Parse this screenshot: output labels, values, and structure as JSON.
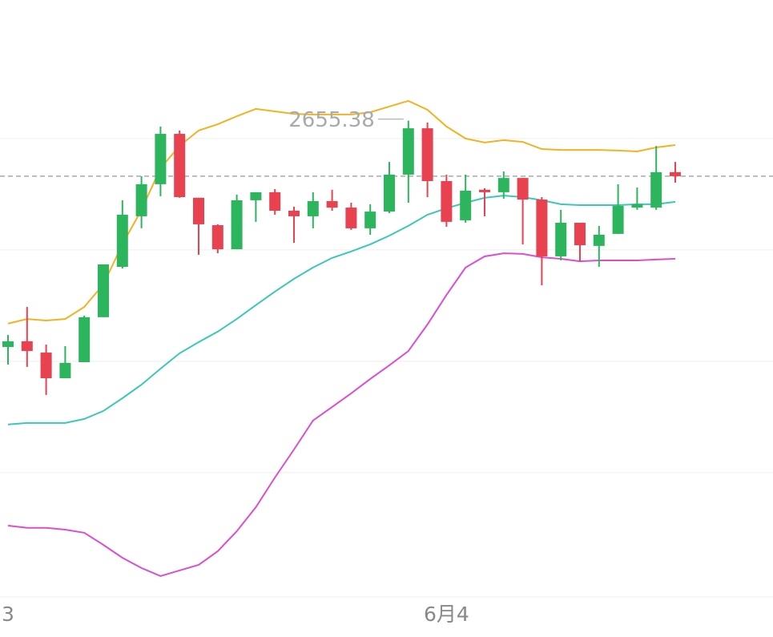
{
  "chart_data": {
    "type": "candlestick",
    "categories": [
      "3",
      null,
      null,
      null,
      null,
      null,
      null,
      null,
      null,
      null,
      null,
      null,
      null,
      null,
      null,
      null,
      null,
      null,
      null,
      null,
      null,
      null,
      null,
      "6月4",
      null,
      null,
      null,
      null,
      null,
      null,
      null,
      null,
      null,
      null,
      null,
      null
    ],
    "open": [
      2645.22,
      2645.48,
      2644.97,
      2643.82,
      2644.54,
      2646.56,
      2648.82,
      2651.09,
      2652.53,
      2654.79,
      2651.92,
      2650.69,
      2649.61,
      2651.81,
      2652.17,
      2651.34,
      2651.09,
      2651.77,
      2651.48,
      2650.55,
      2651.3,
      2652.96,
      2655.04,
      2652.67,
      2650.91,
      2652.28,
      2652.17,
      2652.81,
      2651.84,
      2649.29,
      2650.8,
      2649.76,
      2650.3,
      2651.48,
      2651.48,
      2653.07
    ],
    "high": [
      2645.76,
      2647.02,
      2645.33,
      2645.26,
      2646.63,
      2648.93,
      2651.81,
      2652.89,
      2655.12,
      2654.94,
      2651.92,
      2650.73,
      2652.06,
      2652.17,
      2652.31,
      2651.52,
      2652.17,
      2652.28,
      2651.7,
      2651.63,
      2653.53,
      2655.38,
      2655.3,
      2652.96,
      2652.96,
      2652.35,
      2653.1,
      2652.81,
      2651.95,
      2651.38,
      2650.8,
      2650.66,
      2652.53,
      2652.38,
      2654.25,
      2653.53
    ],
    "low": [
      2644.43,
      2644.33,
      2643.07,
      2643.82,
      2644.54,
      2646.56,
      2648.75,
      2650.55,
      2651.99,
      2651.92,
      2649.36,
      2649.43,
      2649.61,
      2650.84,
      2651.16,
      2649.9,
      2650.55,
      2651.34,
      2650.48,
      2650.26,
      2651.23,
      2651.7,
      2651.95,
      2650.62,
      2650.8,
      2651.09,
      2651.88,
      2649.83,
      2647.99,
      2649.11,
      2649.07,
      2648.82,
      2650.3,
      2651.38,
      2651.38,
      2652.6
    ],
    "close": [
      2645.48,
      2645.04,
      2643.82,
      2644.51,
      2646.56,
      2648.93,
      2651.16,
      2652.53,
      2654.79,
      2651.95,
      2650.73,
      2649.61,
      2651.81,
      2652.17,
      2651.34,
      2651.09,
      2651.77,
      2651.48,
      2650.55,
      2651.3,
      2652.96,
      2655.04,
      2652.67,
      2650.84,
      2652.24,
      2652.17,
      2652.81,
      2651.84,
      2649.29,
      2650.8,
      2649.79,
      2650.26,
      2651.56,
      2651.63,
      2653.07,
      2652.89
    ],
    "up_color": "#2db55d",
    "down_color": "#e84150",
    "bands": [
      {
        "color": "#f0b323",
        "values": [
          2646.27,
          2646.48,
          2646.41,
          2646.48,
          2647.02,
          2648.03,
          2649.83,
          2651.38,
          2653.25,
          2654.25,
          2654.94,
          2655.22,
          2655.58,
          2655.91,
          2655.8,
          2655.69,
          2655.66,
          2655.66,
          2655.66,
          2655.76,
          2656.02,
          2656.27,
          2655.87,
          2655.12,
          2654.58,
          2654.4,
          2654.51,
          2654.43,
          2654.11,
          2654.07,
          2654.07,
          2654.07,
          2654.04,
          2654.0,
          2654.18,
          2654.29
        ]
      },
      {
        "color": "#3cc8b4",
        "values": [
          2641.74,
          2641.81,
          2641.81,
          2641.81,
          2641.99,
          2642.35,
          2642.92,
          2643.53,
          2644.25,
          2644.94,
          2645.44,
          2645.91,
          2646.48,
          2647.1,
          2647.71,
          2648.28,
          2648.79,
          2649.22,
          2649.51,
          2649.83,
          2650.22,
          2650.66,
          2651.16,
          2651.45,
          2651.7,
          2651.92,
          2652.02,
          2651.95,
          2651.81,
          2651.63,
          2651.59,
          2651.59,
          2651.59,
          2651.63,
          2651.63,
          2651.74
        ]
      },
      {
        "color": "#d94fcf",
        "values": [
          2637.2,
          2637.1,
          2637.1,
          2637.02,
          2636.88,
          2636.34,
          2635.76,
          2635.3,
          2634.94,
          2635.19,
          2635.44,
          2636.05,
          2636.95,
          2638.03,
          2639.36,
          2640.62,
          2641.92,
          2642.53,
          2643.14,
          2643.79,
          2644.4,
          2645.04,
          2646.23,
          2647.56,
          2648.79,
          2649.29,
          2649.43,
          2649.4,
          2649.25,
          2649.18,
          2649.07,
          2649.11,
          2649.11,
          2649.11,
          2649.15,
          2649.18
        ]
      }
    ],
    "last_price": 2652.89,
    "annotation": {
      "text": "2655.38",
      "index": 21
    },
    "ylim": [
      2634.0,
      2660.8
    ],
    "yticks": [
      2654.58,
      2649.58,
      2644.58,
      2639.58
    ],
    "grid": true
  }
}
